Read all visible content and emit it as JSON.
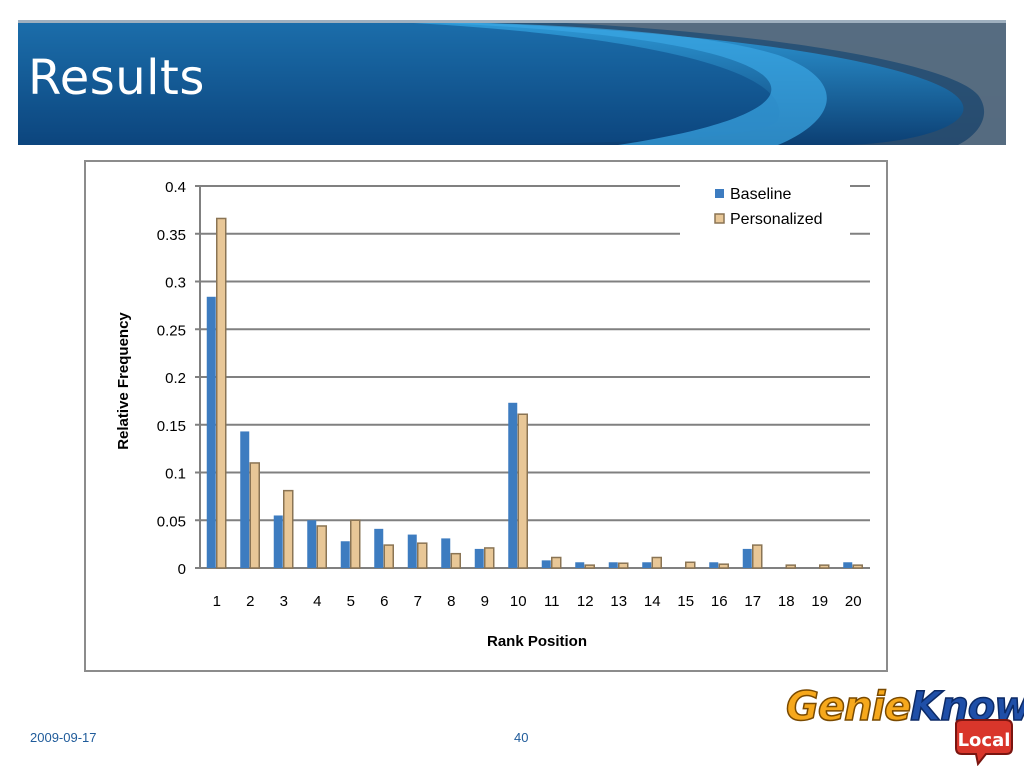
{
  "slide": {
    "title": "Results",
    "date": "2009-09-17",
    "page": "40",
    "logo": {
      "part1": "Genie",
      "part2": "Knows",
      "badge": "Local"
    }
  },
  "colors": {
    "banner_dark": "#0c3f73",
    "banner_light": "#2e9ad8",
    "baseline": "#3d7cc0",
    "personalized": "#e8c797",
    "personalized_border": "#8a7454",
    "grid": "#808080"
  },
  "chart_data": {
    "type": "bar",
    "xlabel": "Rank Position",
    "ylabel": "Relative Frequency",
    "ylim": [
      0,
      0.4
    ],
    "yticks": [
      "0",
      "0.05",
      "0.1",
      "0.15",
      "0.2",
      "0.25",
      "0.3",
      "0.35",
      "0.4"
    ],
    "legend_position": "top-right",
    "categories": [
      "1",
      "2",
      "3",
      "4",
      "5",
      "6",
      "7",
      "8",
      "9",
      "10",
      "11",
      "12",
      "13",
      "14",
      "15",
      "16",
      "17",
      "18",
      "19",
      "20"
    ],
    "series": [
      {
        "name": "Baseline",
        "values": [
          0.284,
          0.143,
          0.055,
          0.05,
          0.028,
          0.041,
          0.035,
          0.031,
          0.02,
          0.173,
          0.008,
          0.006,
          0.006,
          0.006,
          0,
          0.006,
          0.02,
          0,
          0,
          0.006
        ]
      },
      {
        "name": "Personalized",
        "values": [
          0.366,
          0.11,
          0.081,
          0.044,
          0.05,
          0.024,
          0.026,
          0.015,
          0.021,
          0.161,
          0.011,
          0.003,
          0.005,
          0.011,
          0.006,
          0.004,
          0.024,
          0.003,
          0.003,
          0.003
        ]
      }
    ]
  }
}
